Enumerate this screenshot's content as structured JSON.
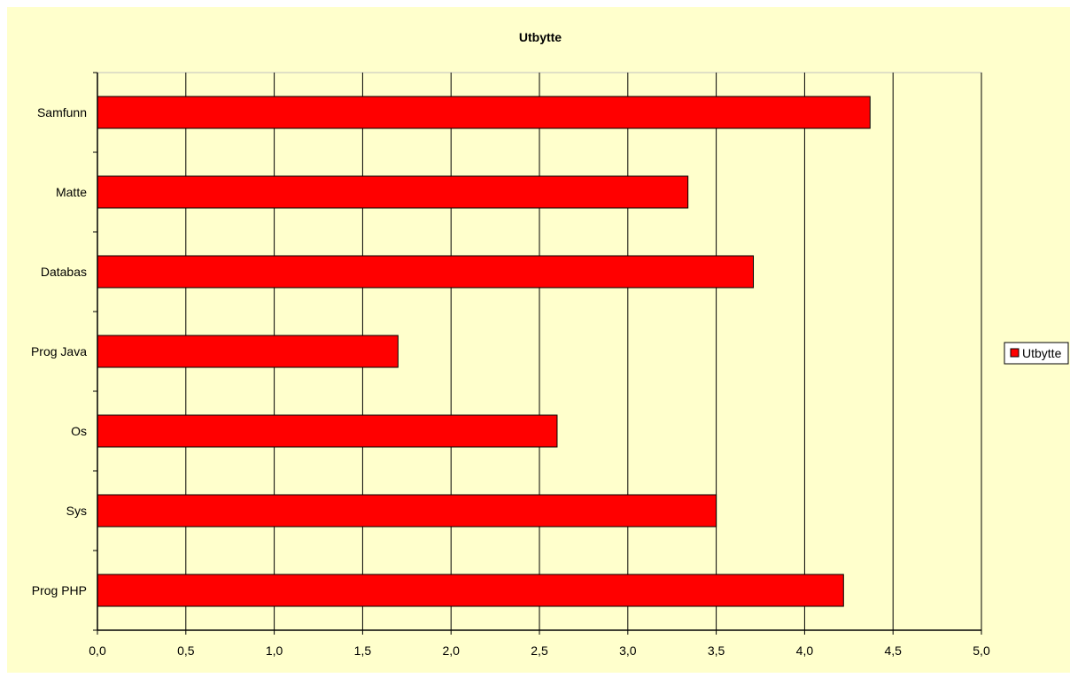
{
  "chart_data": {
    "type": "bar",
    "orientation": "horizontal",
    "title": "Utbytte",
    "xlabel": "",
    "ylabel": "",
    "categories": [
      "Samfunn",
      "Matte",
      "Databas",
      "Prog Java",
      "Os",
      "Sys",
      "Prog PHP"
    ],
    "series": [
      {
        "name": "Utbytte",
        "values": [
          4.37,
          3.34,
          3.71,
          1.7,
          2.6,
          3.5,
          4.22
        ]
      }
    ],
    "xlim": [
      0,
      5
    ],
    "x_ticks": [
      "0,0",
      "0,5",
      "1,0",
      "1,5",
      "2,0",
      "2,5",
      "3,0",
      "3,5",
      "4,0",
      "4,5",
      "5,0"
    ],
    "grid": "vertical major gridlines",
    "legend_position": "right",
    "colors": {
      "bar": "#ff0000",
      "bar_edge": "#000000",
      "background": "#ffffcc",
      "plot_background": "#ffffcc",
      "gridline": "#000000"
    }
  }
}
